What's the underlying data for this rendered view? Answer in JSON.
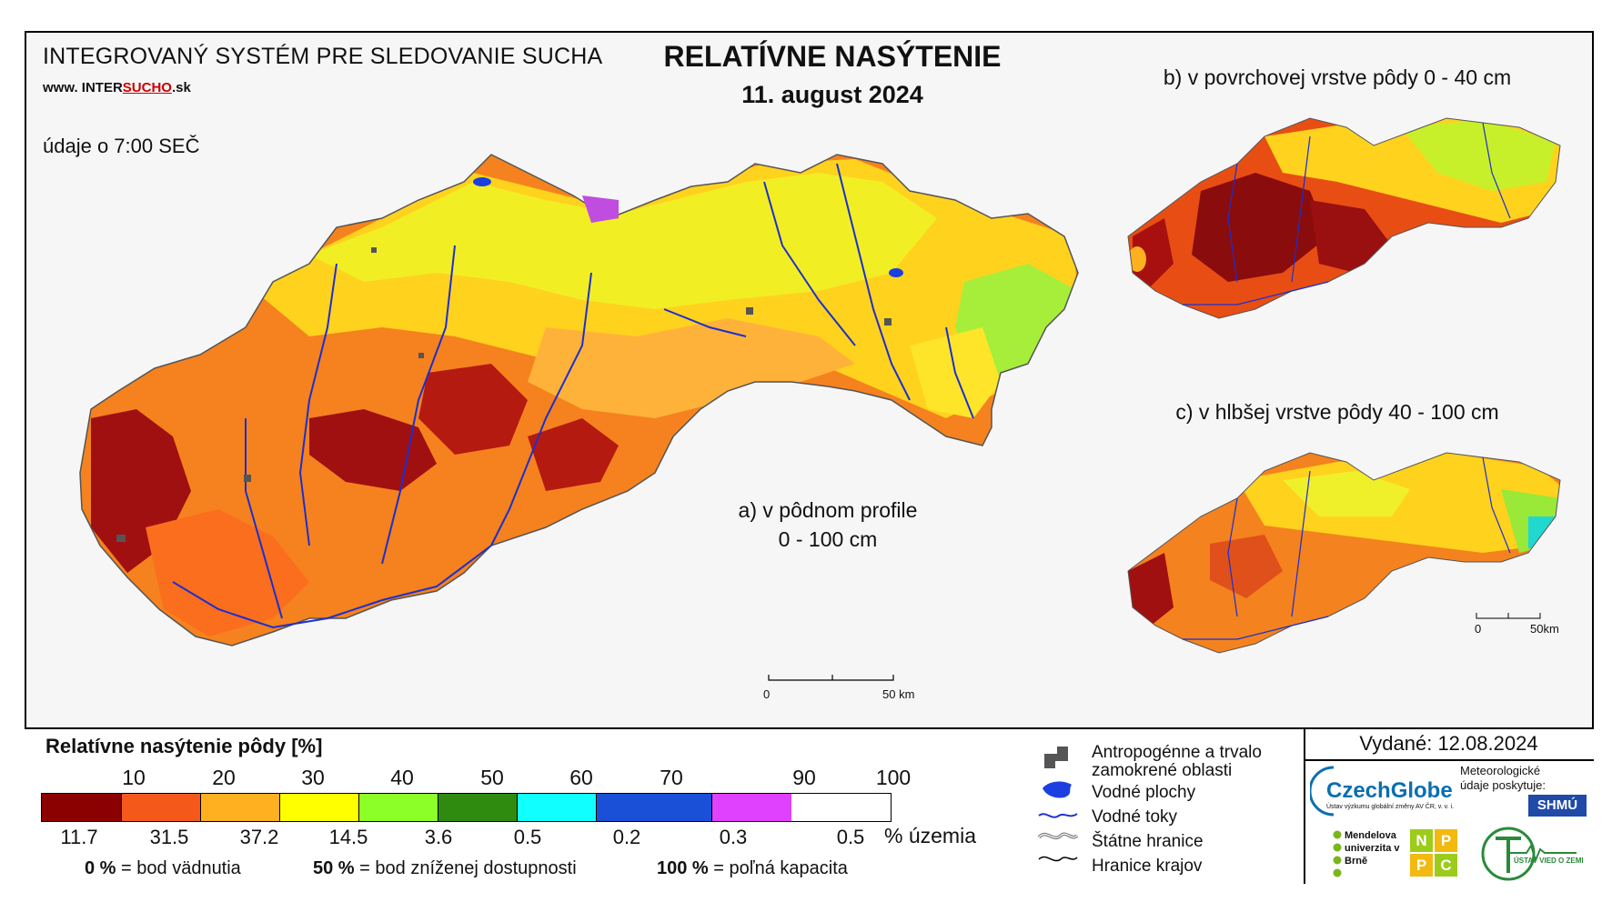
{
  "header": {
    "system_name": "INTEGROVANÝ SYSTÉM PRE SLEDOVANIE SUCHA",
    "website_prefix": "www. INTER",
    "website_mid": "SUCHO",
    "website_suffix": ".sk",
    "data_time": "údaje o 7:00 SEČ",
    "title": "RELATÍVNE NASÝTENIE",
    "date": "11. august 2024"
  },
  "maps": {
    "a_label_line1": "a) v pôdnom profile",
    "a_label_line2": "0 - 100 cm",
    "b_label": "b) v povrchovej vrstve pôdy 0 - 40 cm",
    "c_label": "c) v hlbšej vrstve pôdy 40 - 100 cm",
    "scale_main": {
      "start": "0",
      "end": "50 km"
    },
    "scale_small": {
      "start": "0",
      "end": "50km"
    }
  },
  "legend": {
    "title": "Relatívne nasýtenie pôdy [%]",
    "ticks": [
      "10",
      "20",
      "30",
      "40",
      "50",
      "60",
      "70",
      "90",
      "100"
    ],
    "classes": [
      {
        "color": "#8b0000",
        "pct": "11.7"
      },
      {
        "color": "#f4581a",
        "pct": "31.5"
      },
      {
        "color": "#ffb020",
        "pct": "37.2"
      },
      {
        "color": "#ffff00",
        "pct": "14.5"
      },
      {
        "color": "#8cff28",
        "pct": "3.6"
      },
      {
        "color": "#2e8b10",
        "pct": "0.5"
      },
      {
        "color": "#10ffff",
        "pct": "0.2"
      },
      {
        "color": "#1a4fd8",
        "pct": "0.3"
      },
      {
        "color": "#e040ff",
        "pct": "0.5"
      }
    ],
    "pct_unit": "% územia",
    "footnotes": [
      {
        "value": "0 %",
        "text": "= bod vädnutia"
      },
      {
        "value": "50 %",
        "text": "= bod zníženej dostupnosti"
      },
      {
        "value": "100 %",
        "text": "= poľná kapacita"
      }
    ],
    "symbols": [
      {
        "icon": "urban-area-icon",
        "label": "Antropogénne a trvalo zamokrené oblasti"
      },
      {
        "icon": "water-body-icon",
        "label": "Vodné plochy"
      },
      {
        "icon": "river-icon",
        "label": "Vodné toky"
      },
      {
        "icon": "state-border-icon",
        "label": "Štátne hranice"
      },
      {
        "icon": "region-border-icon",
        "label": "Hranice krajov"
      }
    ]
  },
  "issued": {
    "label": "Vydané: 12.08.2024",
    "czechglobe": "CzechGlobe",
    "czechglobe_sub": "Ústav výzkumu globální změny AV ČR, v. v. i.",
    "met_data": "Meteorologické údaje poskytuje:",
    "shmu": "SHMÚ",
    "mendel": "Mendelova univerzita v Brně",
    "nppc": [
      "N",
      "P",
      "P",
      "C"
    ],
    "uvz": "ÚSTAV VIED O ZEMI"
  }
}
